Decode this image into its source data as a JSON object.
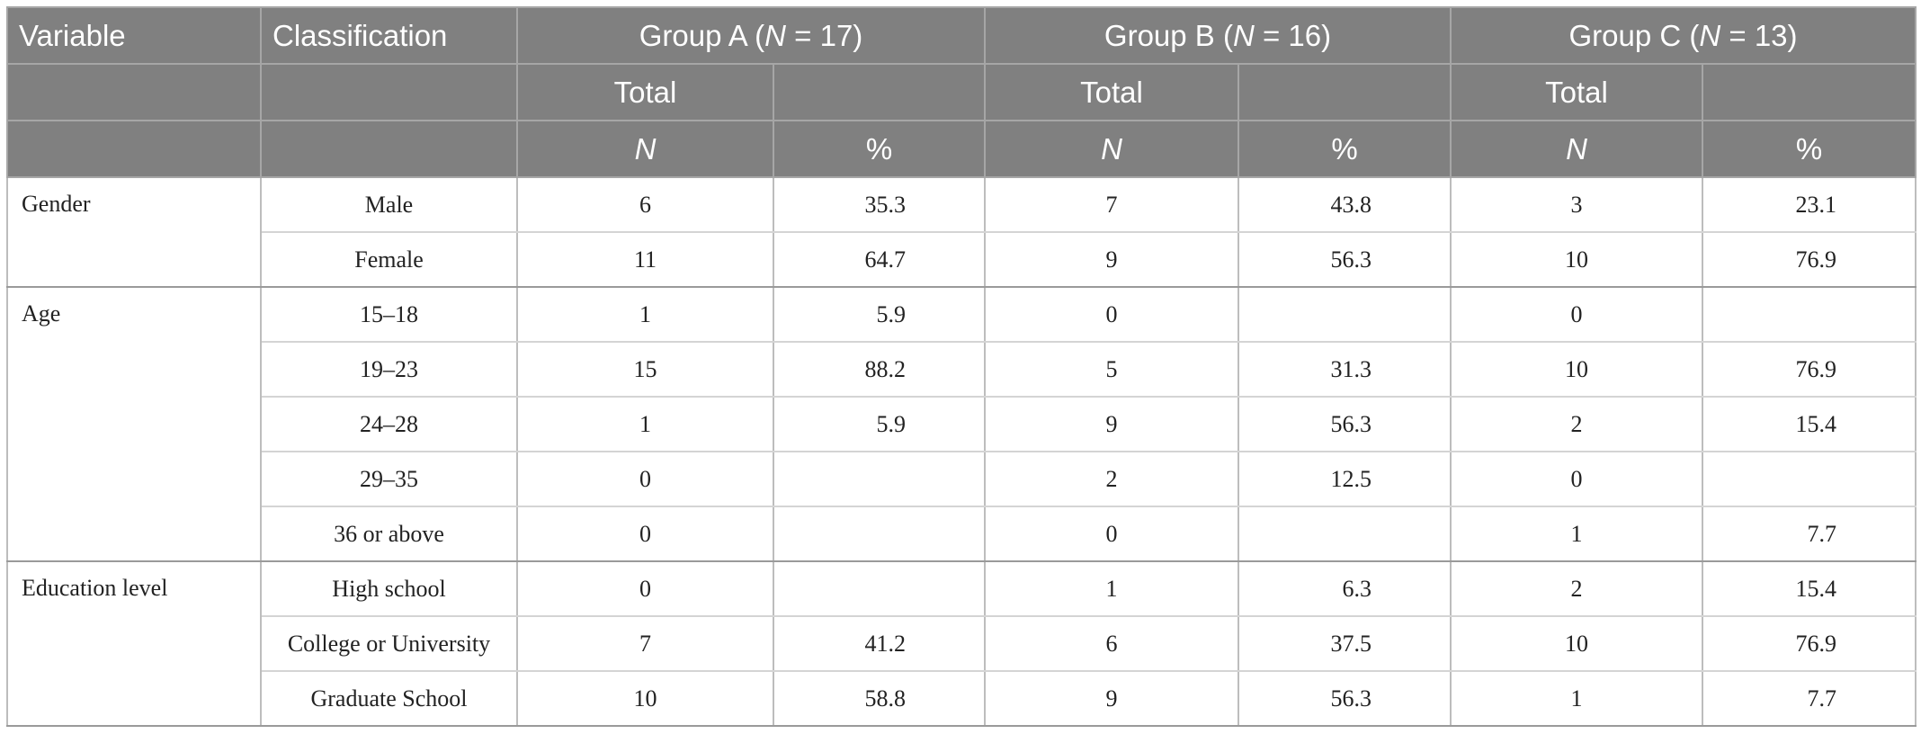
{
  "header": {
    "variable": "Variable",
    "classification": "Classification",
    "groups": [
      {
        "prefix": "Group A (",
        "n_symbol": "N",
        "suffix": " = 17)"
      },
      {
        "prefix": "Group B (",
        "n_symbol": "N",
        "suffix": " = 16)"
      },
      {
        "prefix": "Group C (",
        "n_symbol": "N",
        "suffix": " = 13)"
      }
    ],
    "total": "Total",
    "n": "N",
    "pct": "%"
  },
  "rows": [
    {
      "variable": "Gender",
      "span": 2,
      "items": [
        {
          "classification": "Male",
          "values": [
            "6",
            "35.3",
            "7",
            "43.8",
            "3",
            "23.1"
          ]
        },
        {
          "classification": "Female",
          "values": [
            "11",
            "64.7",
            "9",
            "56.3",
            "10",
            "76.9"
          ]
        }
      ]
    },
    {
      "variable": "Age",
      "span": 5,
      "items": [
        {
          "classification": "15–18",
          "values": [
            "1",
            "5.9",
            "0",
            "",
            "0",
            ""
          ]
        },
        {
          "classification": "19–23",
          "values": [
            "15",
            "88.2",
            "5",
            "31.3",
            "10",
            "76.9"
          ]
        },
        {
          "classification": "24–28",
          "values": [
            "1",
            "5.9",
            "9",
            "56.3",
            "2",
            "15.4"
          ]
        },
        {
          "classification": "29–35",
          "values": [
            "0",
            "",
            "2",
            "12.5",
            "0",
            ""
          ]
        },
        {
          "classification": "36 or above",
          "values": [
            "0",
            "",
            "0",
            "",
            "1",
            "7.7"
          ]
        }
      ]
    },
    {
      "variable": "Education level",
      "span": 3,
      "items": [
        {
          "classification": "High school",
          "values": [
            "0",
            "",
            "1",
            "6.3",
            "2",
            "15.4"
          ]
        },
        {
          "classification": "College or University",
          "values": [
            "7",
            "41.2",
            "6",
            "37.5",
            "10",
            "76.9"
          ]
        },
        {
          "classification": "Graduate School",
          "values": [
            "10",
            "58.8",
            "9",
            "56.3",
            "1",
            "7.7"
          ]
        }
      ]
    }
  ]
}
